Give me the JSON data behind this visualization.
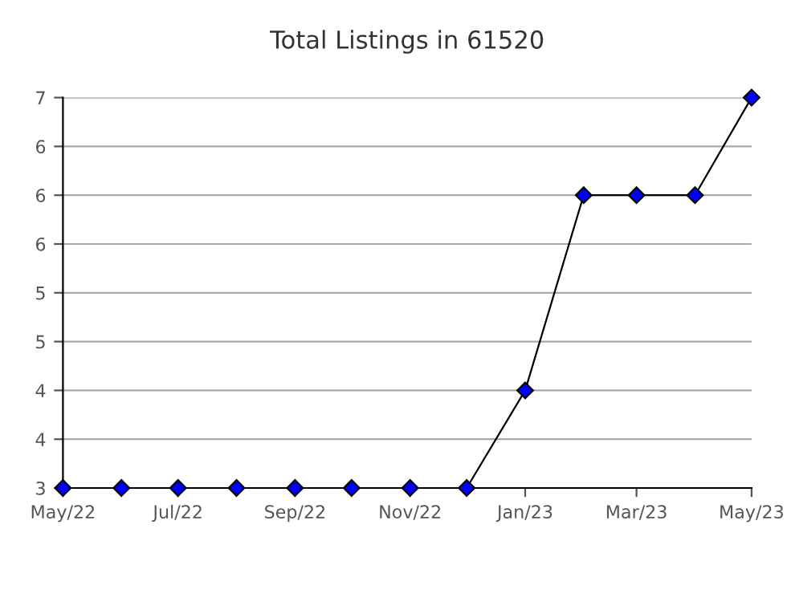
{
  "chart_data": {
    "type": "line",
    "title": "Total Listings in 61520",
    "x": [
      "2022-05",
      "2022-06",
      "2022-07",
      "2022-08",
      "2022-09",
      "2022-10",
      "2022-11",
      "2022-12",
      "2023-01",
      "2023-02",
      "2023-03",
      "2023-04",
      "2023-05"
    ],
    "series": [
      {
        "color": "#0000ff",
        "values": [
          3,
          3,
          3,
          3,
          3,
          3,
          3,
          3,
          4,
          6,
          6,
          6,
          7
        ]
      }
    ],
    "xlim": [
      "2022-05",
      "2023-05"
    ],
    "xticks": [
      {
        "value": "2022-05",
        "label": "May/22"
      },
      {
        "value": "2022-07",
        "label": "Jul/22"
      },
      {
        "value": "2022-09",
        "label": "Sep/22"
      },
      {
        "value": "2022-11",
        "label": "Nov/22"
      },
      {
        "value": "2023-01",
        "label": "Jan/23"
      },
      {
        "value": "2023-03",
        "label": "Mar/23"
      },
      {
        "value": "2023-05",
        "label": "May/23"
      }
    ],
    "ylim": [
      3,
      7
    ],
    "yticks": [
      {
        "value": 3,
        "label": "3"
      },
      {
        "value": 3.5,
        "label": "4"
      },
      {
        "value": 4,
        "label": "4"
      },
      {
        "value": 4.5,
        "label": "5"
      },
      {
        "value": 5,
        "label": "5"
      },
      {
        "value": 5.5,
        "label": "6"
      },
      {
        "value": 6,
        "label": "6"
      },
      {
        "value": 6.5,
        "label": "6"
      },
      {
        "value": 7,
        "label": "7"
      }
    ],
    "grid": "y",
    "marker": "diamond",
    "line_style": "solid"
  }
}
